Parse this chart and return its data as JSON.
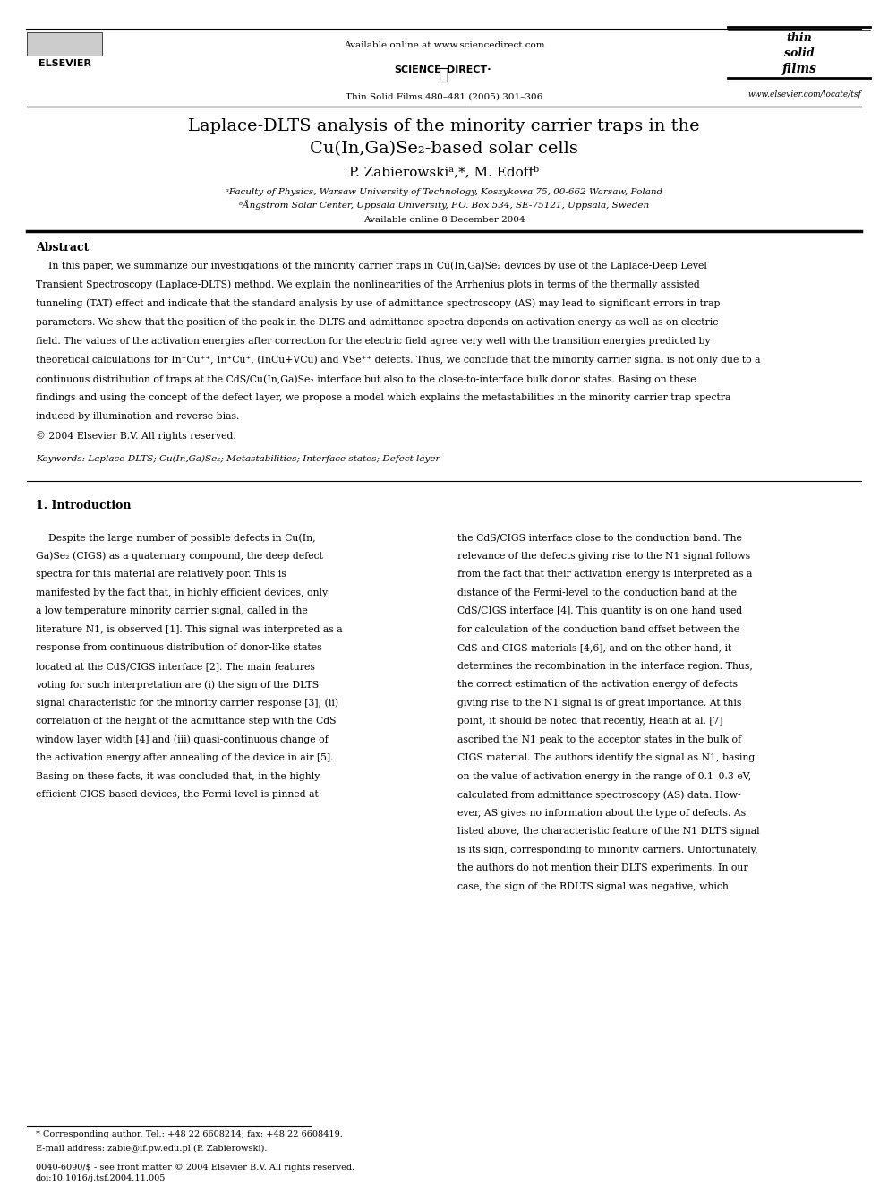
{
  "page_width": 9.92,
  "page_height": 13.23,
  "bg_color": "#ffffff",
  "header": {
    "available_online": "Available online at www.sciencedirect.com",
    "journal_line": "Thin Solid Films 480–481 (2005) 301–306",
    "website": "www.elsevier.com/locate/tsf",
    "science_direct_text": "SCIENCE    DIRECT·"
  },
  "title_line1": "Laplace-DLTS analysis of the minority carrier traps in the",
  "title_line2": "Cu(In,Ga)Se₂-based solar cells",
  "authors": "P. Zabierowskiᵃ,*, M. Edoffᵇ",
  "affil1": "ᵃFaculty of Physics, Warsaw University of Technology, Koszykowa 75, 00-662 Warsaw, Poland",
  "affil2": "ᵇÅngström Solar Center, Uppsala University, P.O. Box 534, SE-75121, Uppsala, Sweden",
  "available_online_date": "Available online 8 December 2004",
  "abstract_title": "Abstract",
  "keywords": "Keywords: Laplace-DLTS; Cu(In,Ga)Se₂; Metastabilities; Interface states; Defect layer",
  "section1_title": "1. Introduction",
  "abstract_lines": [
    "    In this paper, we summarize our investigations of the minority carrier traps in Cu(In,Ga)Se₂ devices by use of the Laplace-Deep Level",
    "Transient Spectroscopy (Laplace-DLTS) method. We explain the nonlinearities of the Arrhenius plots in terms of the thermally assisted",
    "tunneling (TAT) effect and indicate that the standard analysis by use of admittance spectroscopy (AS) may lead to significant errors in trap",
    "parameters. We show that the position of the peak in the DLTS and admittance spectra depends on activation energy as well as on electric",
    "field. The values of the activation energies after correction for the electric field agree very well with the transition energies predicted by",
    "theoretical calculations for In⁺Cu⁺⁺, In⁺Cu⁺, (InCu+VCu) and VSe⁺⁺ defects. Thus, we conclude that the minority carrier signal is not only due to a",
    "continuous distribution of traps at the CdS/Cu(In,Ga)Se₂ interface but also to the close-to-interface bulk donor states. Basing on these",
    "findings and using the concept of the defect layer, we propose a model which explains the metastabilities in the minority carrier trap spectra",
    "induced by illumination and reverse bias.",
    "© 2004 Elsevier B.V. All rights reserved."
  ],
  "col1_lines": [
    "    Despite the large number of possible defects in Cu(In,",
    "Ga)Se₂ (CIGS) as a quaternary compound, the deep defect",
    "spectra for this material are relatively poor. This is",
    "manifested by the fact that, in highly efficient devices, only",
    "a low temperature minority carrier signal, called in the",
    "literature N1, is observed [1]. This signal was interpreted as a",
    "response from continuous distribution of donor-like states",
    "located at the CdS/CIGS interface [2]. The main features",
    "voting for such interpretation are (i) the sign of the DLTS",
    "signal characteristic for the minority carrier response [3], (ii)",
    "correlation of the height of the admittance step with the CdS",
    "window layer width [4] and (iii) quasi-continuous change of",
    "the activation energy after annealing of the device in air [5].",
    "Basing on these facts, it was concluded that, in the highly",
    "efficient CIGS-based devices, the Fermi-level is pinned at"
  ],
  "col2_lines": [
    "the CdS/CIGS interface close to the conduction band. The",
    "relevance of the defects giving rise to the N1 signal follows",
    "from the fact that their activation energy is interpreted as a",
    "distance of the Fermi-level to the conduction band at the",
    "CdS/CIGS interface [4]. This quantity is on one hand used",
    "for calculation of the conduction band offset between the",
    "CdS and CIGS materials [4,6], and on the other hand, it",
    "determines the recombination in the interface region. Thus,",
    "the correct estimation of the activation energy of defects",
    "giving rise to the N1 signal is of great importance. At this",
    "point, it should be noted that recently, Heath at al. [7]",
    "ascribed the N1 peak to the acceptor states in the bulk of",
    "CIGS material. The authors identify the signal as N1, basing",
    "on the value of activation energy in the range of 0.1–0.3 eV,",
    "calculated from admittance spectroscopy (AS) data. How-",
    "ever, AS gives no information about the type of defects. As",
    "listed above, the characteristic feature of the N1 DLTS signal",
    "is its sign, corresponding to minority carriers. Unfortunately,",
    "the authors do not mention their DLTS experiments. In our",
    "case, the sign of the RDLTS signal was negative, which"
  ],
  "footnote_line1": "* Corresponding author. Tel.: +48 22 6608214; fax: +48 22 6608419.",
  "footnote_line2": "E-mail address: zabie@if.pw.edu.pl (P. Zabierowski).",
  "issn_line1": "0040-6090/$ - see front matter © 2004 Elsevier B.V. All rights reserved.",
  "issn_line2": "doi:10.1016/j.tsf.2004.11.005"
}
